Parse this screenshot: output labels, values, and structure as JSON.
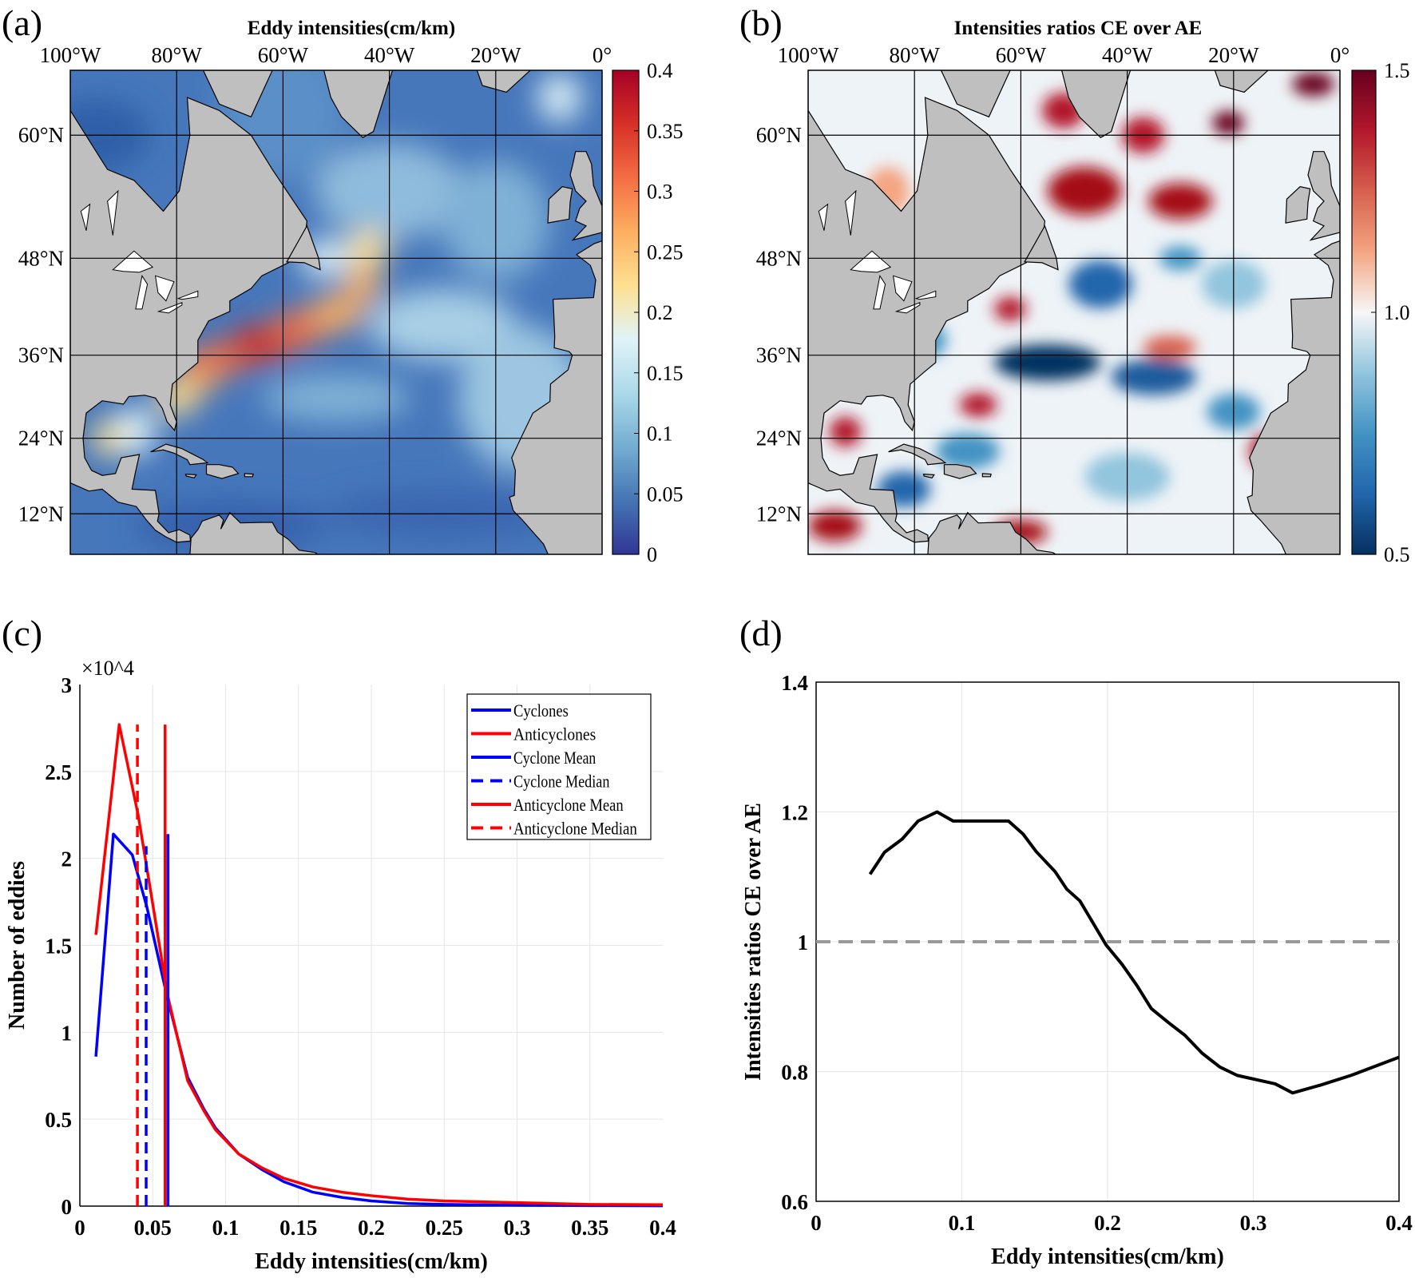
{
  "panels": {
    "a": {
      "label": "(a)",
      "title": "Eddy intensities(cm/km)"
    },
    "b": {
      "label": "(b)",
      "title": "Intensities ratios CE over AE"
    },
    "c": {
      "label": "(c)"
    },
    "d": {
      "label": "(d)"
    }
  },
  "map_axes": {
    "lon_labels": [
      "100°W",
      "80°W",
      "60°W",
      "40°W",
      "20°W",
      "0°"
    ],
    "lat_labels": [
      "60°N",
      "48°N",
      "36°N",
      "24°N",
      "12°N"
    ]
  },
  "colorbars": {
    "a": {
      "ticks": [
        "0",
        "0.05",
        "0.1",
        "0.15",
        "0.2",
        "0.25",
        "0.3",
        "0.35",
        "0.4"
      ],
      "colors": [
        "#313695",
        "#4575b4",
        "#74add1",
        "#abd9e9",
        "#e0f3f8",
        "#fee090",
        "#fdae61",
        "#f46d43",
        "#d73027",
        "#a50026"
      ]
    },
    "b": {
      "ticks": [
        "0.5",
        "1.0",
        "1.5"
      ],
      "colors": [
        "#053061",
        "#2166ac",
        "#4393c3",
        "#92c5de",
        "#f7f7f7",
        "#f4a582",
        "#d6604d",
        "#b2182b",
        "#67001f"
      ]
    }
  },
  "chart_data": [
    {
      "type": "line",
      "panel": "c",
      "xlabel": "Eddy intensities(cm/km)",
      "ylabel": "Number of eddies",
      "y_multiplier": "×10^4",
      "xlim": [
        0,
        0.4
      ],
      "ylim": [
        0,
        3
      ],
      "xticks": [
        "0",
        "0.05",
        "0.1",
        "0.15",
        "0.2",
        "0.25",
        "0.3",
        "0.35",
        "0.4"
      ],
      "yticks": [
        "0",
        "0.5",
        "1",
        "1.5",
        "2",
        "2.5",
        "3"
      ],
      "grid": true,
      "legend_position": "top-right",
      "series": [
        {
          "name": "Cyclones",
          "color": "#0000ff",
          "style": "solid",
          "x": [
            0.011,
            0.023,
            0.036,
            0.046,
            0.06,
            0.074,
            0.085,
            0.093,
            0.109,
            0.125,
            0.14,
            0.16,
            0.18,
            0.2,
            0.225,
            0.25,
            0.3,
            0.35,
            0.4
          ],
          "y": [
            0.86,
            2.14,
            2.02,
            1.72,
            1.2,
            0.74,
            0.56,
            0.45,
            0.3,
            0.21,
            0.14,
            0.08,
            0.05,
            0.03,
            0.015,
            0.01,
            0.005,
            0.003,
            0.002
          ]
        },
        {
          "name": "Anticyclones",
          "color": "#ff0000",
          "style": "solid",
          "x": [
            0.011,
            0.027,
            0.04,
            0.049,
            0.06,
            0.074,
            0.085,
            0.093,
            0.109,
            0.125,
            0.14,
            0.16,
            0.18,
            0.2,
            0.225,
            0.25,
            0.3,
            0.35,
            0.4
          ],
          "y": [
            1.56,
            2.77,
            2.25,
            1.79,
            1.22,
            0.72,
            0.55,
            0.44,
            0.3,
            0.22,
            0.16,
            0.11,
            0.08,
            0.06,
            0.04,
            0.03,
            0.02,
            0.01,
            0.008
          ]
        },
        {
          "name": "Cyclone Mean",
          "color": "#0000ff",
          "style": "solid",
          "vline_x": 0.0605,
          "vline_top": 2.14
        },
        {
          "name": "Cyclone Median",
          "color": "#0000ff",
          "style": "dashed",
          "vline_x": 0.0455,
          "vline_top": 2.07
        },
        {
          "name": "Anticyclone Mean",
          "color": "#ff0000",
          "style": "solid",
          "vline_x": 0.0585,
          "vline_top": 2.77
        },
        {
          "name": "Anticyclone Median",
          "color": "#ff0000",
          "style": "dashed",
          "vline_x": 0.0395,
          "vline_top": 2.77
        }
      ]
    },
    {
      "type": "line",
      "panel": "d",
      "xlabel": "Eddy intensities(cm/km)",
      "ylabel": "Intensities ratios CE over AE",
      "xlim": [
        0,
        0.4
      ],
      "ylim": [
        0.6,
        1.4
      ],
      "xticks": [
        "0",
        "0.1",
        "0.2",
        "0.3",
        "0.4"
      ],
      "yticks": [
        "0.6",
        "0.8",
        "1",
        "1.2",
        "1.4"
      ],
      "grid": true,
      "reference_line": {
        "y": 1.0,
        "color": "#999999",
        "style": "dashed"
      },
      "series": [
        {
          "name": "ratio",
          "color": "#000000",
          "x": [
            0.037,
            0.047,
            0.059,
            0.07,
            0.083,
            0.094,
            0.132,
            0.142,
            0.151,
            0.164,
            0.172,
            0.181,
            0.199,
            0.21,
            0.22,
            0.23,
            0.242,
            0.253,
            0.265,
            0.277,
            0.289,
            0.315,
            0.327,
            0.346,
            0.367,
            0.4
          ],
          "y": [
            1.104,
            1.138,
            1.158,
            1.186,
            1.2,
            1.186,
            1.186,
            1.166,
            1.139,
            1.108,
            1.081,
            1.063,
            0.995,
            0.965,
            0.933,
            0.897,
            0.875,
            0.856,
            0.828,
            0.807,
            0.794,
            0.781,
            0.767,
            0.779,
            0.794,
            0.822
          ]
        }
      ]
    }
  ]
}
